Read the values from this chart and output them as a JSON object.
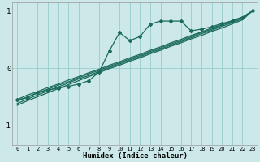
{
  "xlabel": "Humidex (Indice chaleur)",
  "bg_color": "#cce8e8",
  "line_color": "#1a6b5a",
  "grid_color": "#99cccc",
  "xlim": [
    -0.5,
    23.5
  ],
  "ylim": [
    -1.35,
    1.15
  ],
  "yticks": [
    -1,
    0,
    1
  ],
  "xticks": [
    0,
    1,
    2,
    3,
    4,
    5,
    6,
    7,
    8,
    9,
    10,
    11,
    12,
    13,
    14,
    15,
    16,
    17,
    18,
    19,
    20,
    21,
    22,
    23
  ],
  "xtick_labels": [
    "0",
    "1",
    "2",
    "3",
    "4",
    "5",
    "6",
    "7",
    "8",
    "9",
    "10",
    "11",
    "12",
    "13",
    "14",
    "15",
    "16",
    "17",
    "18",
    "19",
    "20",
    "21",
    "22",
    "23"
  ],
  "series_with_markers": [
    -0.55,
    -0.52,
    -0.42,
    -0.38,
    -0.35,
    -0.32,
    -0.28,
    -0.22,
    -0.07,
    0.3,
    0.62,
    0.48,
    0.55,
    0.77,
    0.82,
    0.82,
    0.82,
    0.65,
    0.68,
    0.72,
    0.78,
    0.82,
    0.88,
    1.0
  ],
  "line1": [
    -0.55,
    -0.47,
    -0.41,
    -0.34,
    -0.28,
    -0.21,
    -0.15,
    -0.08,
    -0.02,
    0.05,
    0.11,
    0.18,
    0.24,
    0.31,
    0.37,
    0.44,
    0.5,
    0.57,
    0.63,
    0.7,
    0.76,
    0.83,
    0.89,
    1.0
  ],
  "line2": [
    -0.58,
    -0.5,
    -0.44,
    -0.37,
    -0.3,
    -0.24,
    -0.17,
    -0.1,
    -0.04,
    0.03,
    0.09,
    0.16,
    0.22,
    0.29,
    0.35,
    0.42,
    0.48,
    0.55,
    0.62,
    0.68,
    0.75,
    0.81,
    0.88,
    1.0
  ],
  "line3": [
    -0.62,
    -0.54,
    -0.47,
    -0.4,
    -0.33,
    -0.26,
    -0.19,
    -0.13,
    -0.06,
    0.01,
    0.07,
    0.14,
    0.2,
    0.27,
    0.33,
    0.4,
    0.46,
    0.53,
    0.6,
    0.66,
    0.73,
    0.79,
    0.86,
    1.0
  ],
  "line4": [
    -0.65,
    -0.57,
    -0.5,
    -0.43,
    -0.36,
    -0.29,
    -0.22,
    -0.15,
    -0.08,
    -0.01,
    0.05,
    0.12,
    0.18,
    0.25,
    0.31,
    0.38,
    0.44,
    0.51,
    0.57,
    0.64,
    0.7,
    0.77,
    0.84,
    1.0
  ]
}
